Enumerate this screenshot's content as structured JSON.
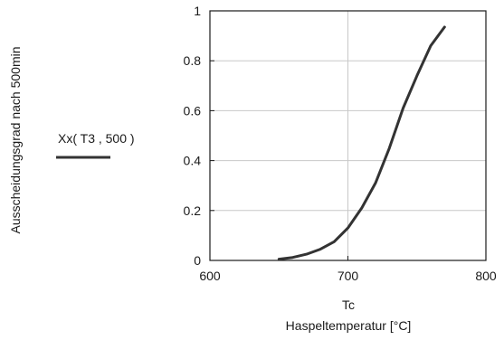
{
  "chart_data": {
    "type": "line",
    "xlabel": "Tc",
    "xlabel2": "Haspeltemperatur [°C]",
    "ylabel": "Ausscheidungsgrad nach 500min",
    "xlim": [
      600,
      800
    ],
    "ylim": [
      0,
      1
    ],
    "xticks": [
      600,
      700,
      800
    ],
    "yticks": [
      0,
      0.2,
      0.4,
      0.6,
      0.8,
      1
    ],
    "ytick_labels": [
      "0",
      "0.2",
      "0.4",
      "0.6",
      "0.8",
      "1"
    ],
    "grid": true,
    "legend_position": "left",
    "series": [
      {
        "name": "Xx( T3 , 500 )",
        "color": "#333333",
        "x": [
          650,
          660,
          670,
          680,
          690,
          700,
          710,
          720,
          730,
          740,
          750,
          760,
          770
        ],
        "y": [
          0.005,
          0.012,
          0.025,
          0.045,
          0.075,
          0.13,
          0.21,
          0.31,
          0.45,
          0.61,
          0.74,
          0.86,
          0.935
        ]
      }
    ]
  }
}
